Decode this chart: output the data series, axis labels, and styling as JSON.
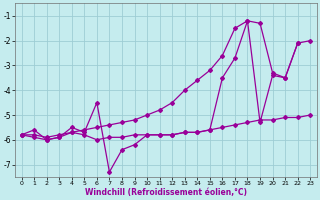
{
  "xlabel": "Windchill (Refroidissement éolien,°C)",
  "bg_color": "#c5ecee",
  "grid_color": "#9ecdd4",
  "line_color": "#990099",
  "xlim": [
    -0.5,
    23.5
  ],
  "ylim": [
    -7.5,
    -0.5
  ],
  "xticks": [
    0,
    1,
    2,
    3,
    4,
    5,
    6,
    7,
    8,
    9,
    10,
    11,
    12,
    13,
    14,
    15,
    16,
    17,
    18,
    19,
    20,
    21,
    22,
    23
  ],
  "yticks": [
    -7,
    -6,
    -5,
    -4,
    -3,
    -2,
    -1
  ],
  "line1_x": [
    0,
    1,
    2,
    3,
    4,
    5,
    6,
    7,
    8,
    9,
    10,
    11,
    12,
    13,
    14,
    15,
    16,
    17,
    18,
    19,
    20,
    21,
    22
  ],
  "line1_y": [
    -5.8,
    -5.6,
    -6.0,
    -5.9,
    -5.5,
    -5.7,
    -4.5,
    -7.3,
    -6.4,
    -6.2,
    -5.8,
    -5.8,
    -5.8,
    -5.7,
    -5.7,
    -5.6,
    -3.5,
    -2.7,
    -1.2,
    -5.3,
    -3.4,
    -3.5,
    -2.1
  ],
  "line2_x": [
    0,
    1,
    2,
    3,
    4,
    5,
    6,
    7,
    8,
    9,
    10,
    11,
    12,
    13,
    14,
    15,
    16,
    17,
    18,
    19,
    20,
    21,
    22,
    23
  ],
  "line2_y": [
    -5.8,
    -5.9,
    -6.0,
    -5.9,
    -5.7,
    -5.8,
    -6.0,
    -5.9,
    -5.9,
    -5.8,
    -5.8,
    -5.8,
    -5.8,
    -5.7,
    -5.7,
    -5.6,
    -5.5,
    -5.4,
    -5.3,
    -5.2,
    -5.2,
    -5.1,
    -5.1,
    -5.0
  ],
  "line3_x": [
    0,
    1,
    2,
    3,
    4,
    5,
    6,
    7,
    8,
    9,
    10,
    11,
    12,
    13,
    14,
    15,
    16,
    17,
    18,
    19,
    20,
    21,
    22,
    23
  ],
  "line3_y": [
    -5.8,
    -5.8,
    -5.9,
    -5.8,
    -5.7,
    -5.6,
    -5.5,
    -5.4,
    -5.3,
    -5.2,
    -5.0,
    -4.8,
    -4.5,
    -4.0,
    -3.6,
    -3.2,
    -2.6,
    -1.5,
    -1.2,
    -1.3,
    -3.3,
    -3.5,
    -2.1,
    -2.0
  ]
}
